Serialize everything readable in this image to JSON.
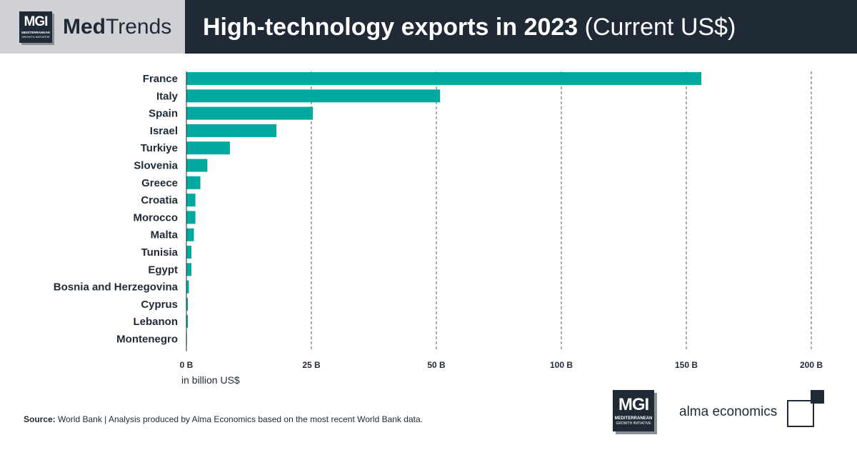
{
  "header": {
    "brand_logo": {
      "mark": "MGI",
      "line1": "MEDITERRANEAN",
      "line2": "GROWTH INITIATIVE"
    },
    "brand_name_bold": "Med",
    "brand_name_rest": "Trends",
    "title_bold": "High-technology exports in 2023",
    "title_unit": "(Current US$)"
  },
  "chart_data": {
    "type": "bar",
    "orientation": "horizontal",
    "categories": [
      "France",
      "Italy",
      "Spain",
      "Israel",
      "Turkiye",
      "Slovenia",
      "Greece",
      "Croatia",
      "Morocco",
      "Malta",
      "Tunisia",
      "Egypt",
      "Bosnia and Herzegovina",
      "Cyprus",
      "Lebanon",
      "Montenegro"
    ],
    "values": [
      156.0,
      51.5,
      25.3,
      18.0,
      8.7,
      4.2,
      2.8,
      1.8,
      1.8,
      1.5,
      1.0,
      1.0,
      0.5,
      0.3,
      0.3,
      0.1
    ],
    "x_ticks": [
      0,
      25,
      50,
      100,
      150,
      200
    ],
    "x_tick_labels": [
      "0 B",
      "25 B",
      "50 B",
      "100 B",
      "150 B",
      "200 B"
    ],
    "xlabel": "in billion US$",
    "grid": "vertical dashed",
    "bar_color": "#00a99d"
  },
  "footer": {
    "source_label": "Source:",
    "source_text": " World Bank   |   Analysis produced by Alma Economics based on the most recent World Bank data.",
    "mgi_logo": {
      "mark": "MGI",
      "line1": "MEDITERRANEAN",
      "line2": "GROWTH INITIATIVE"
    },
    "alma_logo_text": "alma economics"
  },
  "colors": {
    "dark": "#1f2a36",
    "brand_bg": "#cfd1d4",
    "bar": "#00a99d",
    "shadow": "#8a8f96"
  }
}
